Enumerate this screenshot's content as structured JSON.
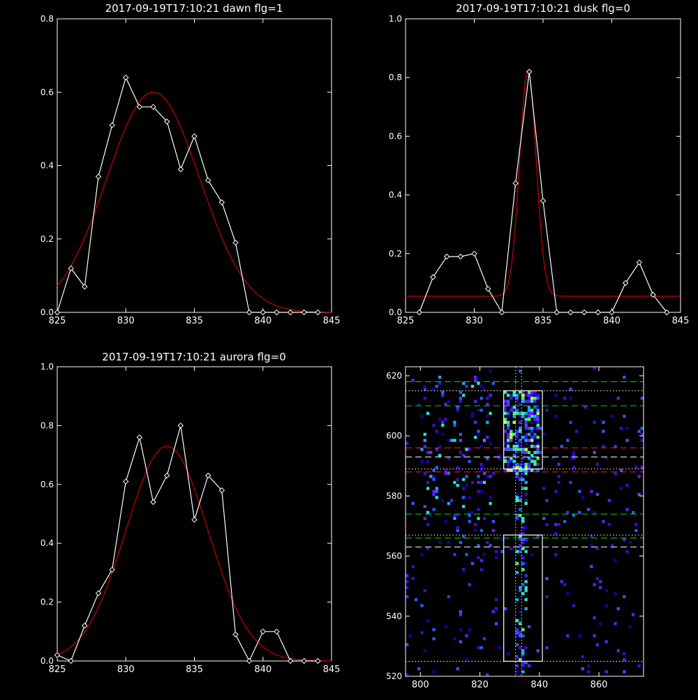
{
  "chart_data": [
    {
      "type": "line",
      "title": "2017-09-19T17:10:21 dawn flg=1",
      "xlim": [
        825,
        845
      ],
      "ylim": [
        0,
        0.8
      ],
      "xticks": [
        825,
        830,
        835,
        840,
        845
      ],
      "yticks": [
        0.0,
        0.2,
        0.4,
        0.6,
        0.8
      ],
      "xtick_labels": [
        "825",
        "830",
        "835",
        "840",
        "845"
      ],
      "ytick_labels": [
        "0.0",
        "0.2",
        "0.4",
        "0.6",
        "0.8"
      ],
      "data_color": "#ffffff",
      "fit_color": "#cc0000",
      "data_x": [
        825,
        826,
        827,
        828,
        829,
        830,
        831,
        832,
        833,
        834,
        835,
        836,
        837,
        838,
        839,
        840,
        841,
        842,
        843,
        844
      ],
      "data_y": [
        0.0,
        0.12,
        0.07,
        0.37,
        0.51,
        0.64,
        0.56,
        0.56,
        0.52,
        0.39,
        0.48,
        0.36,
        0.3,
        0.19,
        0.0,
        0.0,
        0.0,
        0.0,
        0.0,
        0.0
      ],
      "fit": {
        "amplitude": 0.6,
        "center": 832.0,
        "sigma": 3.4,
        "offset": 0.0
      }
    },
    {
      "type": "line",
      "title": "2017-09-19T17:10:21 dusk flg=0",
      "xlim": [
        825,
        845
      ],
      "ylim": [
        0,
        1.0
      ],
      "xticks": [
        825,
        830,
        835,
        840,
        845
      ],
      "yticks": [
        0.0,
        0.2,
        0.4,
        0.6,
        0.8,
        1.0
      ],
      "xtick_labels": [
        "825",
        "830",
        "835",
        "840",
        "845"
      ],
      "ytick_labels": [
        "0.0",
        "0.2",
        "0.4",
        "0.6",
        "0.8",
        "1.0"
      ],
      "data_color": "#ffffff",
      "fit_color": "#cc0000",
      "data_x": [
        826,
        827,
        828,
        829,
        830,
        831,
        832,
        833,
        834,
        835,
        836,
        837,
        838,
        839,
        840,
        841,
        842,
        843,
        844
      ],
      "data_y": [
        0.0,
        0.12,
        0.19,
        0.19,
        0.2,
        0.08,
        0.0,
        0.44,
        0.82,
        0.38,
        0.0,
        0.0,
        0.0,
        0.0,
        0.0,
        0.1,
        0.17,
        0.06,
        0.0
      ],
      "fit": {
        "amplitude": 0.77,
        "center": 833.9,
        "sigma": 0.6,
        "offset": 0.055
      }
    },
    {
      "type": "line",
      "title": "2017-09-19T17:10:21 aurora flg=0",
      "xlim": [
        825,
        845
      ],
      "ylim": [
        0,
        1.0
      ],
      "xticks": [
        825,
        830,
        835,
        840,
        845
      ],
      "yticks": [
        0.0,
        0.2,
        0.4,
        0.6,
        0.8,
        1.0
      ],
      "xtick_labels": [
        "825",
        "830",
        "835",
        "840",
        "845"
      ],
      "ytick_labels": [
        "0.0",
        "0.2",
        "0.4",
        "0.6",
        "0.8",
        "1.0"
      ],
      "data_color": "#ffffff",
      "fit_color": "#cc0000",
      "data_x": [
        825,
        826,
        827,
        828,
        829,
        830,
        831,
        832,
        833,
        834,
        835,
        836,
        837,
        838,
        839,
        840,
        841,
        842,
        843,
        844
      ],
      "data_y": [
        0.02,
        0.0,
        0.12,
        0.23,
        0.31,
        0.61,
        0.76,
        0.54,
        0.63,
        0.8,
        0.48,
        0.63,
        0.58,
        0.09,
        0.0,
        0.1,
        0.1,
        0.0,
        0.0,
        0.0
      ],
      "fit": {
        "amplitude": 0.73,
        "center": 833.0,
        "sigma": 3.0,
        "offset": 0.0
      }
    },
    {
      "type": "heatmap",
      "title": "",
      "xlim": [
        795,
        875
      ],
      "ylim": [
        520,
        623
      ],
      "xticks": [
        800,
        820,
        840,
        860
      ],
      "yticks": [
        520,
        540,
        560,
        580,
        600,
        620
      ],
      "xtick_labels": [
        "800",
        "820",
        "840",
        "860"
      ],
      "ytick_labels": [
        "520",
        "540",
        "560",
        "580",
        "600",
        "620"
      ],
      "colors": [
        "#1a00aa",
        "#3a10d0",
        "#5a20ff",
        "#2a5cff",
        "#1aa8ff",
        "#22e8d0",
        "#40ff70",
        "#c8ff40"
      ],
      "horizontal_lines": [
        {
          "y": 618,
          "color": "#00dd00",
          "style": "dashed"
        },
        {
          "y": 615,
          "color": "#ffffff",
          "style": "dotted"
        },
        {
          "y": 610,
          "color": "#00dd00",
          "style": "dashed"
        },
        {
          "y": 596,
          "color": "#ff2020",
          "style": "dashed"
        },
        {
          "y": 593,
          "color": "#ffffff",
          "style": "dashed"
        },
        {
          "y": 589,
          "color": "#ffffff",
          "style": "dotted"
        },
        {
          "y": 588,
          "color": "#ff2020",
          "style": "dashed"
        },
        {
          "y": 574,
          "color": "#00dd00",
          "style": "dashed"
        },
        {
          "y": 567,
          "color": "#ffffff",
          "style": "dotted"
        },
        {
          "y": 566,
          "color": "#00dd00",
          "style": "dashed"
        },
        {
          "y": 563,
          "color": "#ffffff",
          "style": "dashed"
        },
        {
          "y": 525,
          "color": "#ffffff",
          "style": "dotted"
        }
      ],
      "vertical_lines": [
        {
          "x": 832,
          "color": "#ffffff",
          "style": "dotted"
        },
        {
          "x": 834,
          "color": "#ffffff",
          "style": "dotted"
        }
      ],
      "boxes": [
        {
          "x0": 828,
          "x1": 841,
          "y0": 589,
          "y1": 615,
          "color": "#ffffff"
        },
        {
          "x0": 828,
          "x1": 841,
          "y0": 525,
          "y1": 567,
          "color": "#ffffff"
        }
      ]
    }
  ]
}
